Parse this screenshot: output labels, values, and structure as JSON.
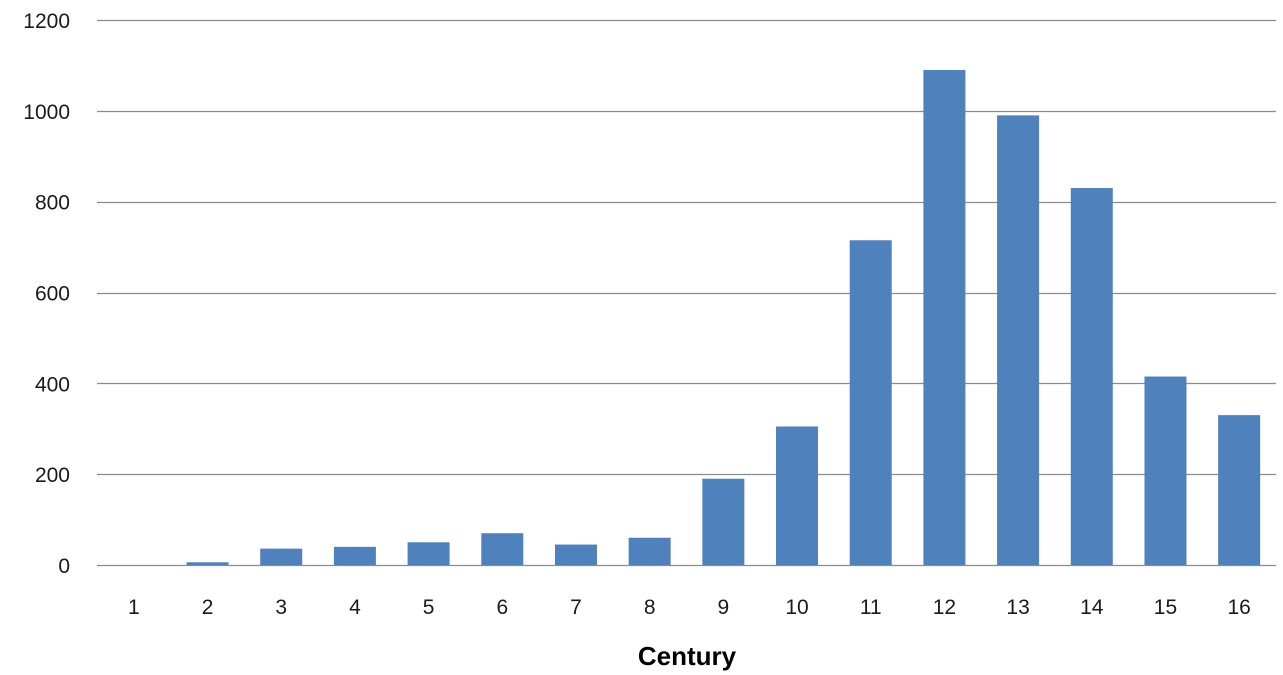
{
  "chart_data": {
    "type": "bar",
    "categories": [
      "1",
      "2",
      "3",
      "4",
      "5",
      "6",
      "7",
      "8",
      "9",
      "10",
      "11",
      "12",
      "13",
      "14",
      "15",
      "16"
    ],
    "values": [
      0,
      6,
      36,
      40,
      50,
      70,
      45,
      60,
      190,
      305,
      715,
      1090,
      990,
      830,
      415,
      330
    ],
    "title": "",
    "xlabel": "Century",
    "ylabel": "",
    "ylim": [
      0,
      1200
    ],
    "yticks": [
      0,
      200,
      400,
      600,
      800,
      1000,
      1200
    ],
    "grid": true,
    "legend": "none",
    "bar_color": "#4f81bd",
    "grid_color": "#8c8c8c"
  }
}
